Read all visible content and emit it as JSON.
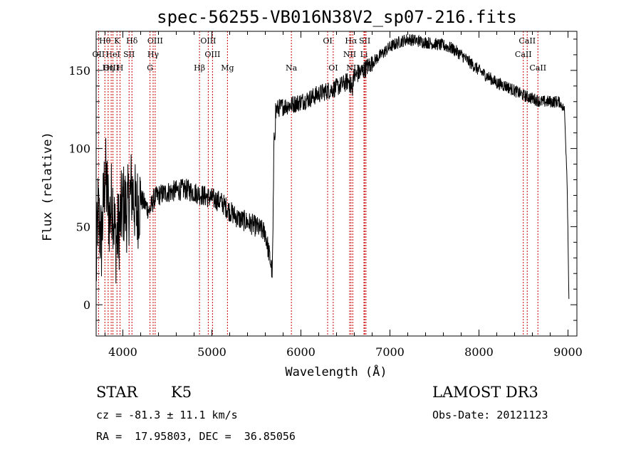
{
  "chart_data": {
    "type": "line",
    "title": "spec-56255-VB016N38V2_sp07-216.fits",
    "xlabel": "Wavelength (Å)",
    "ylabel": "Flux (relative)",
    "xlim": [
      3700,
      9100
    ],
    "ylim": [
      -20,
      175
    ],
    "xticks": [
      4000,
      5000,
      6000,
      7000,
      8000,
      9000
    ],
    "yticks": [
      0,
      50,
      100,
      150
    ],
    "series": [
      {
        "name": "flux",
        "anchors": [
          [
            3700,
            20
          ],
          [
            3720,
            60
          ],
          [
            3760,
            40
          ],
          [
            3800,
            85
          ],
          [
            3850,
            55
          ],
          [
            3880,
            70
          ],
          [
            3920,
            40
          ],
          [
            3960,
            50
          ],
          [
            4000,
            65
          ],
          [
            4050,
            60
          ],
          [
            4100,
            75
          ],
          [
            4150,
            60
          ],
          [
            4200,
            68
          ],
          [
            4250,
            64
          ],
          [
            4300,
            60
          ],
          [
            4350,
            68
          ],
          [
            4400,
            70
          ],
          [
            4500,
            72
          ],
          [
            4600,
            73
          ],
          [
            4700,
            74
          ],
          [
            4800,
            72
          ],
          [
            4900,
            70
          ],
          [
            5000,
            68
          ],
          [
            5100,
            66
          ],
          [
            5200,
            60
          ],
          [
            5300,
            55
          ],
          [
            5400,
            53
          ],
          [
            5500,
            50
          ],
          [
            5600,
            46
          ],
          [
            5650,
            30
          ],
          [
            5680,
            20
          ],
          [
            5700,
            110
          ],
          [
            5720,
            125
          ],
          [
            5800,
            127
          ],
          [
            5900,
            128
          ],
          [
            6000,
            130
          ],
          [
            6100,
            132
          ],
          [
            6200,
            135
          ],
          [
            6300,
            137
          ],
          [
            6400,
            139
          ],
          [
            6500,
            142
          ],
          [
            6600,
            146
          ],
          [
            6700,
            150
          ],
          [
            6800,
            155
          ],
          [
            6900,
            160
          ],
          [
            7000,
            165
          ],
          [
            7100,
            168
          ],
          [
            7200,
            170
          ],
          [
            7300,
            169
          ],
          [
            7400,
            168
          ],
          [
            7500,
            167
          ],
          [
            7600,
            166
          ],
          [
            7700,
            164
          ],
          [
            7800,
            160
          ],
          [
            7900,
            155
          ],
          [
            8000,
            150
          ],
          [
            8100,
            146
          ],
          [
            8200,
            142
          ],
          [
            8300,
            140
          ],
          [
            8400,
            137
          ],
          [
            8500,
            134
          ],
          [
            8600,
            132
          ],
          [
            8700,
            130
          ],
          [
            8800,
            130
          ],
          [
            8900,
            130
          ],
          [
            8960,
            125
          ],
          [
            8990,
            80
          ],
          [
            9010,
            5
          ]
        ]
      }
    ],
    "spectral_lines": [
      {
        "label": "Hθ",
        "wavelength": 3798,
        "row": 0
      },
      {
        "label": "K",
        "wavelength": 3934,
        "row": 0
      },
      {
        "label": "Hδ",
        "wavelength": 4102,
        "row": 0
      },
      {
        "label": "OIII",
        "wavelength": 4363,
        "row": 0
      },
      {
        "label": "OIII",
        "wavelength": 4959,
        "row": 0
      },
      {
        "label": "OI",
        "wavelength": 6300,
        "row": 0
      },
      {
        "label": "Hα",
        "wavelength": 6563,
        "row": 0
      },
      {
        "label": "SII",
        "wavelength": 6717,
        "row": 0
      },
      {
        "label": "CaII",
        "wavelength": 8542,
        "row": 0
      },
      {
        "label": "OII",
        "wavelength": 3727,
        "row": 1
      },
      {
        "label": "HeI",
        "wavelength": 3889,
        "row": 1
      },
      {
        "label": "SII",
        "wavelength": 4070,
        "row": 1
      },
      {
        "label": "Hγ",
        "wavelength": 4340,
        "row": 1
      },
      {
        "label": "OIII",
        "wavelength": 5007,
        "row": 1
      },
      {
        "label": "NII",
        "wavelength": 6548,
        "row": 1
      },
      {
        "label": "Li",
        "wavelength": 6708,
        "row": 1
      },
      {
        "label": "CaII",
        "wavelength": 8498,
        "row": 1
      },
      {
        "label": "OIII",
        "wavelength": 3869,
        "row": 2
      },
      {
        "label": "Hη",
        "wavelength": 3835,
        "row": 2
      },
      {
        "label": "H",
        "wavelength": 3968,
        "row": 2
      },
      {
        "label": "G",
        "wavelength": 4305,
        "row": 2
      },
      {
        "label": "Hβ",
        "wavelength": 4861,
        "row": 2
      },
      {
        "label": "Mg",
        "wavelength": 5175,
        "row": 2
      },
      {
        "label": "Na",
        "wavelength": 5893,
        "row": 2
      },
      {
        "label": "OI",
        "wavelength": 6363,
        "row": 2
      },
      {
        "label": "NII",
        "wavelength": 6583,
        "row": 2
      },
      {
        "label": "SII",
        "wavelength": 6731,
        "row": 2
      },
      {
        "label": "CaII",
        "wavelength": 8662,
        "row": 2
      }
    ]
  },
  "info": {
    "object_class": "STAR",
    "subclass": "K5",
    "survey": "LAMOST DR3",
    "redshift_line": "cz = -81.3 ± 11.1 km/s",
    "obs_date_line": "Obs-Date: 20121123",
    "coord_line": "RA =  17.95803, DEC =  36.85056"
  },
  "colors": {
    "axis": "#000000",
    "spectrum": "#000000",
    "line_marker": "#cc0000"
  }
}
